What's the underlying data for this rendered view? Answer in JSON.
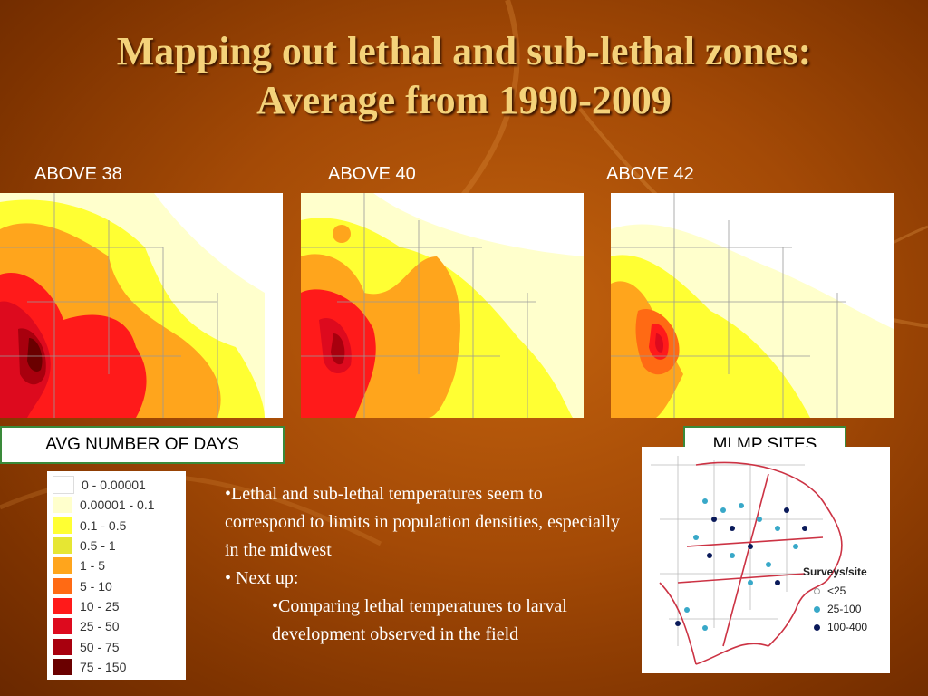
{
  "title": {
    "line1": "Mapping out lethal and sub-lethal zones:",
    "line2": "Average from 1990-2009"
  },
  "maps": [
    {
      "label": "ABOVE 38"
    },
    {
      "label": "ABOVE 40"
    },
    {
      "label": "ABOVE 42"
    }
  ],
  "legend": {
    "heading": "AVG NUMBER OF DAYS",
    "items": [
      {
        "range": "0 - 0.00001",
        "color": "#ffffff"
      },
      {
        "range": "0.00001 - 0.1",
        "color": "#ffffcc"
      },
      {
        "range": "0.1 - 0.5",
        "color": "#ffff33"
      },
      {
        "range": "0.5 - 1",
        "color": "#e6e633"
      },
      {
        "range": "1 - 5",
        "color": "#ffa51c"
      },
      {
        "range": "5 - 10",
        "color": "#ff6a14"
      },
      {
        "range": "10 - 25",
        "color": "#ff1a1a"
      },
      {
        "range": "25 - 50",
        "color": "#dd0a1e"
      },
      {
        "range": "50 - 75",
        "color": "#a8000e"
      },
      {
        "range": "75 - 150",
        "color": "#6a0000"
      }
    ]
  },
  "notes": {
    "bullet1": "•Lethal and sub-lethal temperatures seem to correspond to limits in population densities, especially in the midwest",
    "bullet2": "• Next up:",
    "sub_bullet": "•Comparing lethal temperatures to larval development observed in the field"
  },
  "sites": {
    "heading": "MLMP SITES",
    "legend_title": "Surveys/site",
    "items": [
      {
        "label": "<25",
        "color": "#ffffff",
        "border": "#999999"
      },
      {
        "label": "25-100",
        "color": "#38a8c8",
        "border": "#38a8c8"
      },
      {
        "label": "100-400",
        "color": "#0a1a5a",
        "border": "#0a1a5a"
      }
    ]
  }
}
